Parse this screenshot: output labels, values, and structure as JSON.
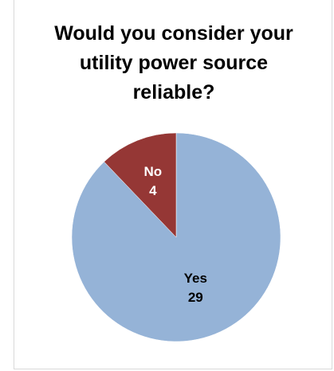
{
  "chart_data": {
    "type": "pie",
    "title_lines": [
      "Would you consider your",
      "utility power source",
      "reliable?"
    ],
    "slices": [
      {
        "label": "Yes",
        "value": 29,
        "color": "#95B3D7",
        "text_color": "#000000"
      },
      {
        "label": "No",
        "value": 4,
        "color": "#953735",
        "text_color": "#ffffff"
      }
    ],
    "start_angle_deg": 0,
    "direction": "counterclockwise-from-top",
    "legend": "none"
  }
}
